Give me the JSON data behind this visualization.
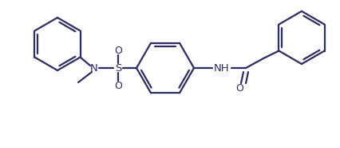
{
  "bg_color": "#ffffff",
  "bond_color": "#2d2d5e",
  "text_color": "#2d2d5e",
  "line_width": 1.6,
  "font_size": 9.5,
  "figsize": [
    4.26,
    1.85
  ],
  "dpi": 100,
  "xlim": [
    0,
    426
  ],
  "ylim": [
    0,
    185
  ]
}
